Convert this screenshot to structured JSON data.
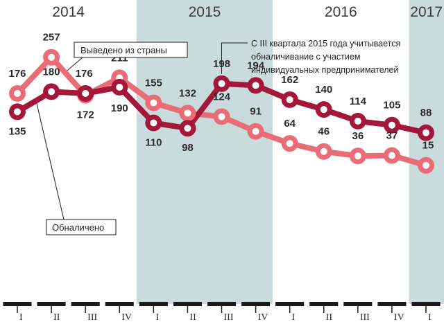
{
  "colors": {
    "background": "#ffffff",
    "year_band": "#c9dcdb",
    "axis": "#1a1a1a",
    "series_cashed": "#a3173a",
    "series_exported": "#ea6c77",
    "marker_center": "#ffffff",
    "leader": "#1a1a1a"
  },
  "chart_data": {
    "type": "line",
    "years": [
      "2014",
      "2015",
      "2016",
      "2017"
    ],
    "x": [
      "I",
      "II",
      "III",
      "IV",
      "I",
      "II",
      "III",
      "IV",
      "I",
      "II",
      "III",
      "IV",
      "I"
    ],
    "series": [
      {
        "name": "Выведено из страны",
        "color": "#ea6c77",
        "values": [
          176,
          257,
          172,
          211,
          155,
          132,
          124,
          91,
          64,
          46,
          36,
          37,
          15
        ]
      },
      {
        "name": "Обналичено",
        "color": "#a3173a",
        "values": [
          135,
          180,
          176,
          190,
          110,
          98,
          198,
          194,
          162,
          140,
          114,
          105,
          88
        ]
      }
    ],
    "ylim": [
      0,
      280
    ],
    "grid": false,
    "annotation": "С III квартала 2015 года учитывается обналичивание с участием индивидуальных предпринимателей"
  },
  "note": {
    "line1": "С III квартала 2015 года учитывается",
    "line2": "обналичивание с участием",
    "line3": "индивидуальных предпринимателей"
  }
}
